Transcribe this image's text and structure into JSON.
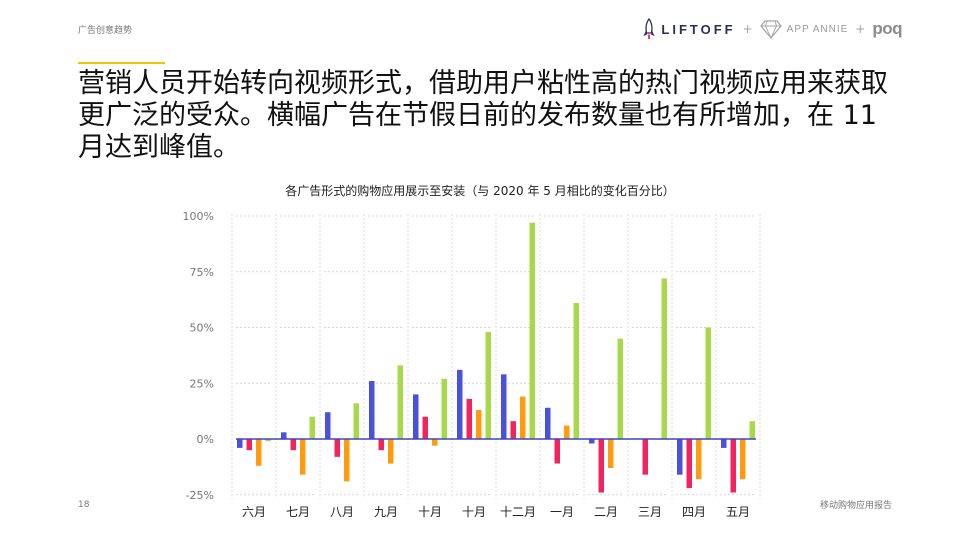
{
  "header": {
    "section_label": "广告创意趋势",
    "logos": {
      "liftoff": "LIFTOFF",
      "plus": "+",
      "appannie": "APP ANNIE",
      "poq": "poq"
    }
  },
  "headline": "营销人员开始转向视频形式，借助用户粘性高的热门视频应用来获取更广泛的受众。横幅广告在节假日前的发布数量也有所增加，在 11 月达到峰值。",
  "footer": {
    "page_number": "18",
    "right_text": "移动购物应用报告"
  },
  "colors": {
    "accent": "#f2c300",
    "series": [
      "#4a51dc",
      "#f0245e",
      "#ff9b0f",
      "#a8d94a"
    ]
  },
  "chart_data": {
    "type": "bar",
    "title": "各广告形式的购物应用展示至安装（与 2020 年 5 月相比的变化百分比）",
    "categories": [
      "六月",
      "七月",
      "八月",
      "九月",
      "十月",
      "十月",
      "十二月",
      "一月",
      "二月",
      "三月",
      "四月",
      "五月"
    ],
    "yticks": [
      "100%",
      "75%",
      "50%",
      "25%",
      "0%",
      "-25%"
    ],
    "ylim": [
      -25,
      100
    ],
    "grid": true,
    "legend": "none",
    "series": [
      {
        "values": [
          -4,
          3,
          12,
          26,
          20,
          31,
          29,
          14,
          -2,
          0,
          -16,
          -4
        ]
      },
      {
        "values": [
          -5,
          -5,
          -8,
          -5,
          10,
          18,
          8,
          -11,
          -24,
          -16,
          -22,
          -24
        ]
      },
      {
        "values": [
          -12,
          -16,
          -19,
          -11,
          -3,
          13,
          19,
          6,
          -13,
          0,
          -18,
          -18
        ]
      },
      {
        "values": [
          -1,
          10,
          16,
          33,
          27,
          48,
          97,
          61,
          45,
          72,
          50,
          8
        ]
      }
    ]
  }
}
